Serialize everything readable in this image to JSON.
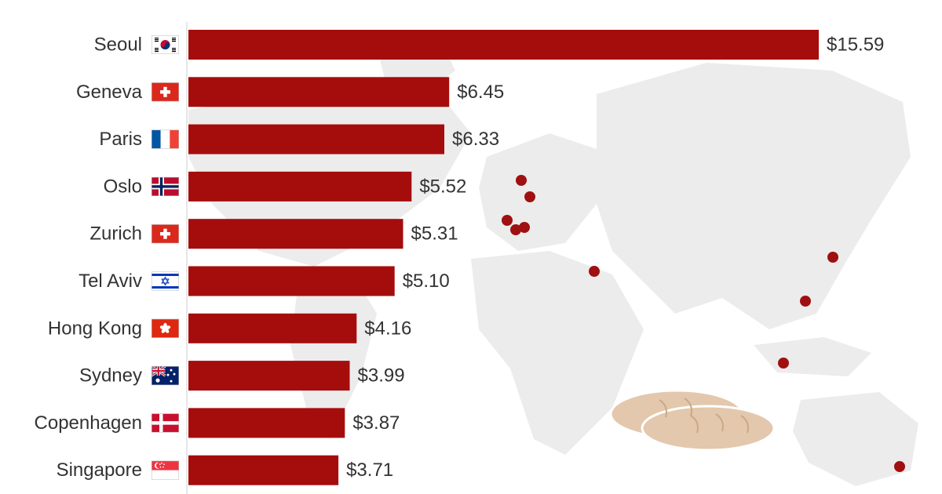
{
  "chart_data": {
    "type": "bar",
    "orientation": "horizontal",
    "categories": [
      "Seoul",
      "Geneva",
      "Paris",
      "Oslo",
      "Zurich",
      "Tel Aviv",
      "Hong Kong",
      "Sydney",
      "Copenhagen",
      "Singapore"
    ],
    "values": [
      15.59,
      6.45,
      6.33,
      5.52,
      5.31,
      5.1,
      4.16,
      3.99,
      3.87,
      3.71
    ],
    "value_labels": [
      "$15.59",
      "$6.45",
      "$6.33",
      "$5.52",
      "$5.31",
      "$5.10",
      "$4.16",
      "$3.99",
      "$3.87",
      "$3.71"
    ],
    "flags": [
      "south-korea-flag-icon",
      "switzerland-flag-icon",
      "france-flag-icon",
      "norway-flag-icon",
      "switzerland-flag-icon",
      "israel-flag-icon",
      "hong-kong-flag-icon",
      "australia-flag-icon",
      "denmark-flag-icon",
      "singapore-flag-icon"
    ],
    "title": "",
    "xlabel": "",
    "ylabel": "",
    "xlim": [
      0,
      15.59
    ],
    "grid": false,
    "legend": "none",
    "colors": {
      "bar": "#a50d0d",
      "marker": "#a01010",
      "map": "#ececec",
      "bread": "#e3c8ad",
      "text": "#333333"
    },
    "background_decoration": [
      "world-map",
      "city-markers",
      "bread-loaves-illustration"
    ]
  }
}
